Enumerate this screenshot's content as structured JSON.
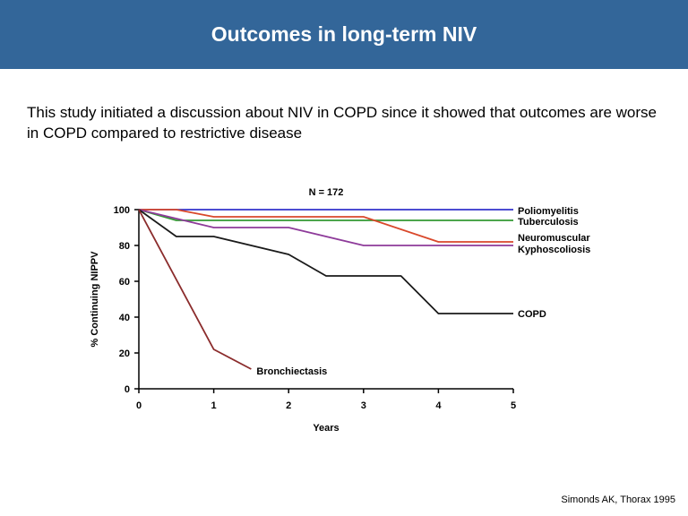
{
  "slide": {
    "title": "Outcomes in long-term NIV",
    "body": "This study initiated a discussion about NIV in COPD since it showed that outcomes are worse in COPD compared to restrictive disease",
    "citation": "Simonds AK, Thorax 1995"
  },
  "chart_data": {
    "type": "line",
    "title": "N = 172",
    "xlabel": "Years",
    "ylabel": "% Continuing NIPPV",
    "xlim": [
      0,
      5
    ],
    "ylim": [
      0,
      100
    ],
    "xticks": [
      "0",
      "1",
      "2",
      "3",
      "4",
      "5"
    ],
    "yticks": [
      "0",
      "20",
      "40",
      "60",
      "80",
      "100"
    ],
    "grid": false,
    "series": [
      {
        "name": "Poliomyelitis",
        "color": "#3333cc",
        "points": [
          [
            0,
            100
          ],
          [
            5,
            100
          ]
        ]
      },
      {
        "name": "Tuberculosis",
        "color": "#339933",
        "points": [
          [
            0,
            100
          ],
          [
            0.5,
            94
          ],
          [
            5,
            94
          ]
        ]
      },
      {
        "name": "Neuromuscular",
        "color": "#d9482b",
        "points": [
          [
            0,
            100
          ],
          [
            0.5,
            100
          ],
          [
            1,
            96
          ],
          [
            3,
            96
          ],
          [
            4,
            82
          ],
          [
            5,
            82
          ]
        ]
      },
      {
        "name": "Kyphoscoliosis",
        "color": "#8e3b9a",
        "points": [
          [
            0,
            100
          ],
          [
            1,
            90
          ],
          [
            2,
            90
          ],
          [
            3,
            80
          ],
          [
            5,
            80
          ]
        ]
      },
      {
        "name": "COPD",
        "color": "#1a1a1a",
        "points": [
          [
            0,
            100
          ],
          [
            0.5,
            85
          ],
          [
            1,
            85
          ],
          [
            2,
            75
          ],
          [
            2.5,
            63
          ],
          [
            3.5,
            63
          ],
          [
            4,
            42
          ],
          [
            5,
            42
          ]
        ]
      },
      {
        "name": "Bronchiectasis",
        "color": "#8b2c2c",
        "points": [
          [
            0,
            100
          ],
          [
            1,
            22
          ],
          [
            1.5,
            11
          ]
        ]
      }
    ]
  }
}
